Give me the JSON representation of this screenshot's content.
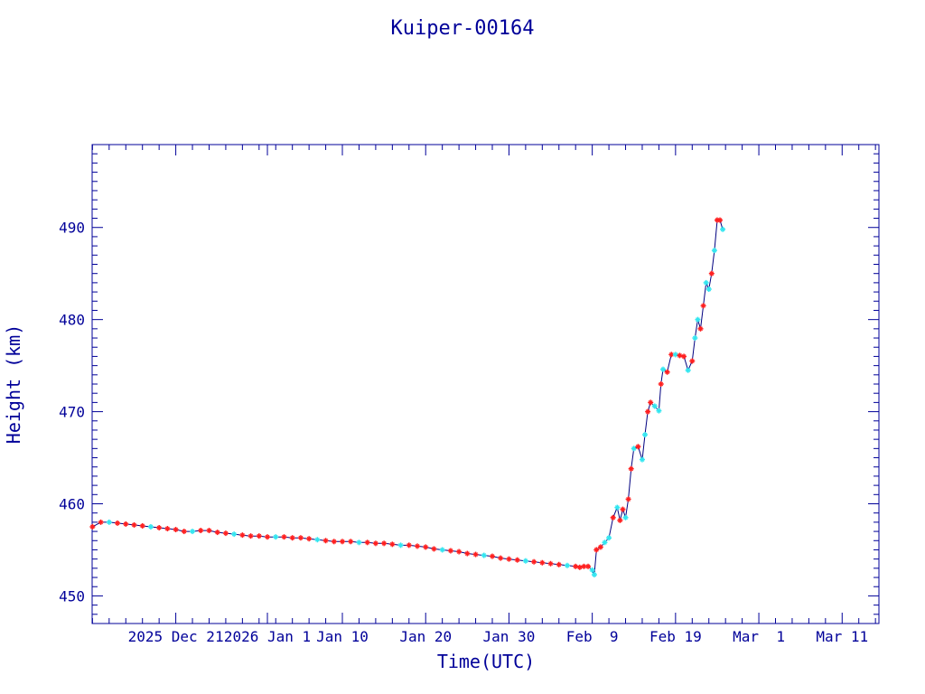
{
  "chart_data": {
    "type": "line",
    "title": "Kuiper-00164",
    "xlabel": "Time(UTC)",
    "ylabel": "Height (km)",
    "xlim": [
      "2025-12-10T23:00",
      "2026-03-15T10:00"
    ],
    "ylim": [
      447,
      499
    ],
    "x_ticks": [
      {
        "date": "2025-12-21",
        "label": "2025 Dec 21"
      },
      {
        "date": "2026-01-01",
        "label": "2026 Jan 1"
      },
      {
        "date": "2026-01-10",
        "label": "Jan 10"
      },
      {
        "date": "2026-01-20",
        "label": "Jan 20"
      },
      {
        "date": "2026-01-30",
        "label": "Jan 30"
      },
      {
        "date": "2026-02-09",
        "label": "Feb  9"
      },
      {
        "date": "2026-02-19",
        "label": "Feb 19"
      },
      {
        "date": "2026-03-01",
        "label": "Mar  1"
      },
      {
        "date": "2026-03-11",
        "label": "Mar 11"
      }
    ],
    "y_ticks": [
      450,
      460,
      470,
      480,
      490
    ],
    "grid": false,
    "colors": {
      "axis": "#000099",
      "line": "#000080",
      "marker_a": "#ff2020",
      "marker_b": "#33e6f0"
    },
    "series": [
      {
        "points": [
          [
            "2025-12-11",
            457.5
          ],
          [
            "2025-12-12",
            458.0
          ],
          [
            "2025-12-13",
            458.0
          ],
          [
            "2025-12-14",
            457.9
          ],
          [
            "2025-12-15",
            457.8
          ],
          [
            "2025-12-16",
            457.7
          ],
          [
            "2025-12-17",
            457.6
          ],
          [
            "2025-12-18",
            457.5
          ],
          [
            "2025-12-19",
            457.4
          ],
          [
            "2025-12-20",
            457.3
          ],
          [
            "2025-12-21",
            457.2
          ],
          [
            "2025-12-22",
            457.0
          ],
          [
            "2025-12-23",
            457.0
          ],
          [
            "2025-12-24",
            457.1
          ],
          [
            "2025-12-25",
            457.1
          ],
          [
            "2025-12-26",
            456.9
          ],
          [
            "2025-12-27",
            456.8
          ],
          [
            "2025-12-28",
            456.7
          ],
          [
            "2025-12-29",
            456.6
          ],
          [
            "2025-12-30",
            456.5
          ],
          [
            "2025-12-31",
            456.5
          ],
          [
            "2026-01-01",
            456.4
          ],
          [
            "2026-01-02",
            456.4
          ],
          [
            "2026-01-03",
            456.4
          ],
          [
            "2026-01-04",
            456.3
          ],
          [
            "2026-01-05",
            456.3
          ],
          [
            "2026-01-06",
            456.2
          ],
          [
            "2026-01-07",
            456.1
          ],
          [
            "2026-01-08",
            456.0
          ],
          [
            "2026-01-09",
            455.9
          ],
          [
            "2026-01-10",
            455.9
          ],
          [
            "2026-01-11",
            455.9
          ],
          [
            "2026-01-12",
            455.8
          ],
          [
            "2026-01-13",
            455.8
          ],
          [
            "2026-01-14",
            455.7
          ],
          [
            "2026-01-15",
            455.7
          ],
          [
            "2026-01-16",
            455.6
          ],
          [
            "2026-01-17",
            455.5
          ],
          [
            "2026-01-18",
            455.5
          ],
          [
            "2026-01-19",
            455.4
          ],
          [
            "2026-01-20",
            455.3
          ],
          [
            "2026-01-21",
            455.1
          ],
          [
            "2026-01-22",
            455.0
          ],
          [
            "2026-01-23",
            454.9
          ],
          [
            "2026-01-24",
            454.8
          ],
          [
            "2026-01-25",
            454.6
          ],
          [
            "2026-01-26",
            454.5
          ],
          [
            "2026-01-27",
            454.4
          ],
          [
            "2026-01-28",
            454.3
          ],
          [
            "2026-01-29",
            454.1
          ],
          [
            "2026-01-30",
            454.0
          ],
          [
            "2026-01-31",
            453.9
          ],
          [
            "2026-02-01",
            453.8
          ],
          [
            "2026-02-02",
            453.7
          ],
          [
            "2026-02-03",
            453.6
          ],
          [
            "2026-02-04",
            453.5
          ],
          [
            "2026-02-05",
            453.4
          ],
          [
            "2026-02-06",
            453.3
          ],
          [
            "2026-02-07",
            453.2
          ],
          [
            "2026-02-07T12:00",
            453.1
          ],
          [
            "2026-02-08",
            453.2
          ],
          [
            "2026-02-08T12:00",
            453.2
          ],
          [
            "2026-02-09",
            452.8
          ],
          [
            "2026-02-09T06:00",
            452.3
          ],
          [
            "2026-02-09T12:00",
            455.0
          ],
          [
            "2026-02-10",
            455.3
          ],
          [
            "2026-02-10T12:00",
            455.8
          ],
          [
            "2026-02-11",
            456.3
          ],
          [
            "2026-02-11T12:00",
            458.5
          ],
          [
            "2026-02-12",
            459.6
          ],
          [
            "2026-02-12T08:00",
            458.2
          ],
          [
            "2026-02-12T16:00",
            459.4
          ],
          [
            "2026-02-13",
            458.5
          ],
          [
            "2026-02-13T08:00",
            460.5
          ],
          [
            "2026-02-13T16:00",
            463.8
          ],
          [
            "2026-02-14",
            466.0
          ],
          [
            "2026-02-14T12:00",
            466.2
          ],
          [
            "2026-02-15",
            464.8
          ],
          [
            "2026-02-15T08:00",
            467.5
          ],
          [
            "2026-02-15T16:00",
            470.0
          ],
          [
            "2026-02-16",
            471.0
          ],
          [
            "2026-02-16T12:00",
            470.6
          ],
          [
            "2026-02-17",
            470.1
          ],
          [
            "2026-02-17T06:00",
            473.0
          ],
          [
            "2026-02-17T12:00",
            474.6
          ],
          [
            "2026-02-18",
            474.3
          ],
          [
            "2026-02-18T12:00",
            476.2
          ],
          [
            "2026-02-19",
            476.2
          ],
          [
            "2026-02-19T12:00",
            476.1
          ],
          [
            "2026-02-20",
            476.0
          ],
          [
            "2026-02-20T12:00",
            474.5
          ],
          [
            "2026-02-21",
            475.5
          ],
          [
            "2026-02-21T08:00",
            478.0
          ],
          [
            "2026-02-21T16:00",
            480.0
          ],
          [
            "2026-02-22",
            479.0
          ],
          [
            "2026-02-22T08:00",
            481.5
          ],
          [
            "2026-02-22T16:00",
            484.0
          ],
          [
            "2026-02-23",
            483.3
          ],
          [
            "2026-02-23T08:00",
            485.0
          ],
          [
            "2026-02-23T16:00",
            487.5
          ],
          [
            "2026-02-24",
            490.8
          ],
          [
            "2026-02-24T08:00",
            490.8
          ],
          [
            "2026-02-24T16:00",
            489.8
          ]
        ]
      }
    ]
  }
}
